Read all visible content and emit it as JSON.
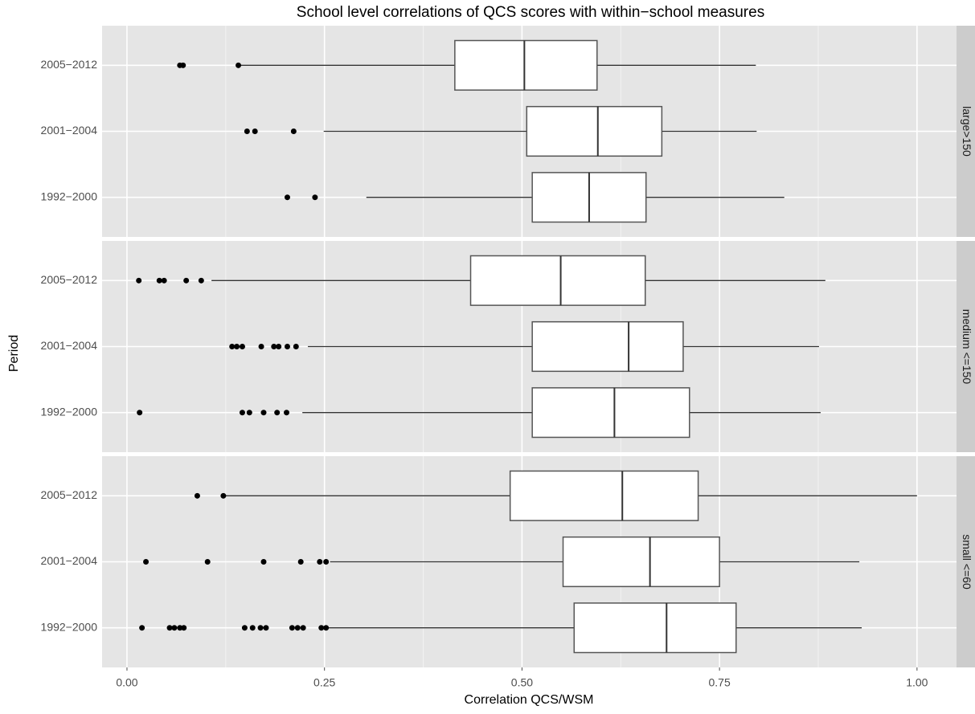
{
  "chart_data": {
    "type": "box",
    "title": "School level correlations of QCS scores with within−school measures",
    "x_label": "Correlation QCS/WSM",
    "y_label": "Period",
    "xlim": [
      -0.0315,
      1.05
    ],
    "xticks": [
      {
        "value": 0,
        "label": "0.00"
      },
      {
        "value": 0.25,
        "label": "0.25"
      },
      {
        "value": 0.5,
        "label": "0.50"
      },
      {
        "value": 0.75,
        "label": "0.75"
      },
      {
        "value": 1,
        "label": "1.00"
      }
    ],
    "grid": true,
    "box_color": "#ffffff",
    "panel_color": "#e5e5e5",
    "strip_color": "#cccccc",
    "facets": [
      {
        "label": "large>150",
        "categories": [
          "2005−2012",
          "2001−2004",
          "1992−2000"
        ],
        "boxes": [
          {
            "min": 0.142,
            "q1": 0.415,
            "median": 0.503,
            "q3": 0.595,
            "max": 0.796,
            "outliers": [
              0.067,
              0.071,
              0.141
            ]
          },
          {
            "min": 0.249,
            "q1": 0.506,
            "median": 0.596,
            "q3": 0.677,
            "max": 0.797,
            "outliers": [
              0.152,
              0.162,
              0.211
            ]
          },
          {
            "min": 0.303,
            "q1": 0.513,
            "median": 0.585,
            "q3": 0.657,
            "max": 0.832,
            "outliers": [
              0.203,
              0.238
            ]
          }
        ]
      },
      {
        "label": "medium <=150",
        "categories": [
          "2005−2012",
          "2001−2004",
          "1992−2000"
        ],
        "boxes": [
          {
            "min": 0.107,
            "q1": 0.435,
            "median": 0.549,
            "q3": 0.656,
            "max": 0.884,
            "outliers": [
              0.015,
              0.041,
              0.047,
              0.075,
              0.094
            ]
          },
          {
            "min": 0.229,
            "q1": 0.513,
            "median": 0.635,
            "q3": 0.704,
            "max": 0.876,
            "outliers": [
              0.133,
              0.139,
              0.146,
              0.17,
              0.186,
              0.192,
              0.203,
              0.214
            ]
          },
          {
            "min": 0.222,
            "q1": 0.513,
            "median": 0.617,
            "q3": 0.712,
            "max": 0.878,
            "outliers": [
              0.016,
              0.146,
              0.155,
              0.173,
              0.19,
              0.202
            ]
          }
        ]
      },
      {
        "label": "small <=60",
        "categories": [
          "2005−2012",
          "2001−2004",
          "1992−2000"
        ],
        "boxes": [
          {
            "min": 0.125,
            "q1": 0.485,
            "median": 0.627,
            "q3": 0.723,
            "max": 1.0,
            "outliers": [
              0.089,
              0.122
            ]
          },
          {
            "min": 0.257,
            "q1": 0.552,
            "median": 0.662,
            "q3": 0.75,
            "max": 0.927,
            "outliers": [
              0.024,
              0.102,
              0.173,
              0.22,
              0.244,
              0.252
            ]
          },
          {
            "min": 0.254,
            "q1": 0.566,
            "median": 0.683,
            "q3": 0.771,
            "max": 0.93,
            "outliers": [
              0.019,
              0.054,
              0.06,
              0.067,
              0.072,
              0.149,
              0.159,
              0.169,
              0.176,
              0.209,
              0.216,
              0.223,
              0.246,
              0.252
            ]
          }
        ]
      }
    ]
  }
}
